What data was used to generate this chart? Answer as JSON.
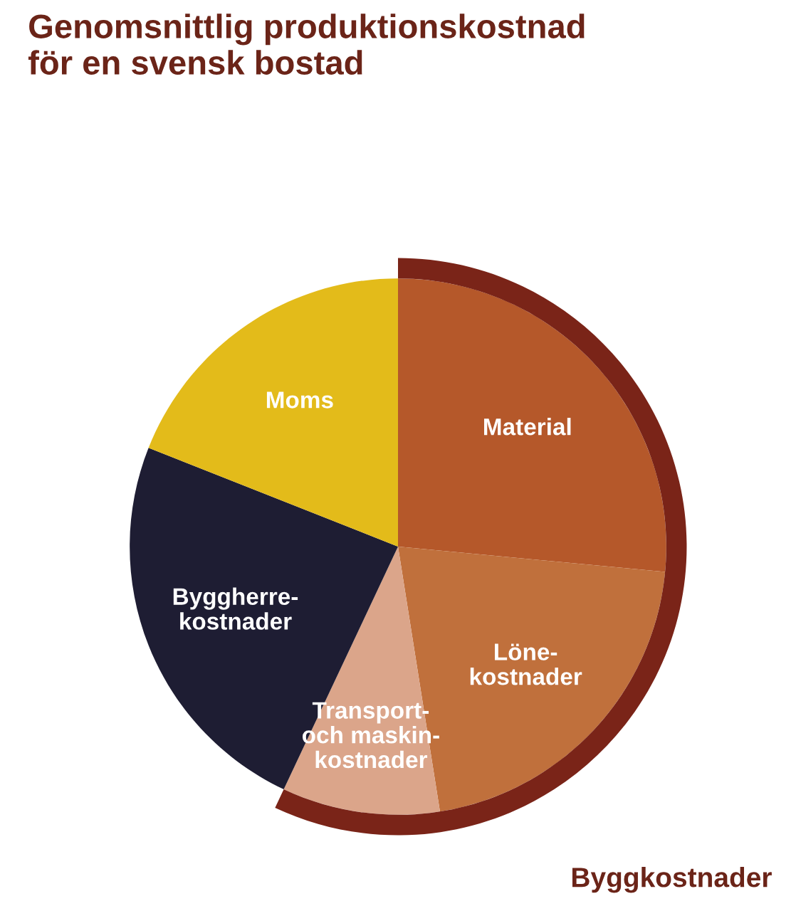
{
  "chart_data": {
    "type": "pie",
    "title": "Genomsnittlig produktionskostnad\nför en svensk bostad",
    "categories": [
      "Material",
      "Löne-\nkostnader",
      "Transport-\noch maskin-\nkostnader",
      "Byggherre-\nkostnader",
      "Moms"
    ],
    "values": [
      26.5,
      21,
      9.5,
      24,
      19
    ],
    "colors": [
      "#b5582a",
      "#c0703c",
      "#dba58a",
      "#1e1d33",
      "#e3bb1a"
    ],
    "annotations": [
      "Byggkostnader"
    ]
  }
}
